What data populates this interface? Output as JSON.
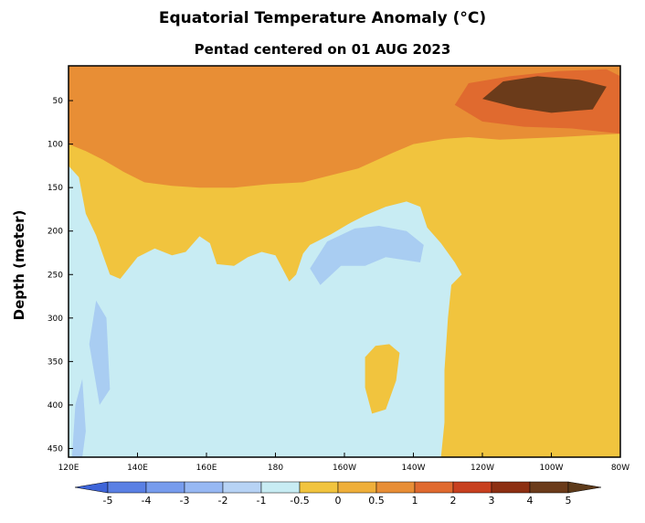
{
  "chart_data": {
    "type": "heatmap",
    "title": "Equatorial Temperature Anomaly (°C)",
    "subtitle": "Pentad centered on 01 AUG 2023",
    "xlabel": "",
    "ylabel": "Depth (meter)",
    "x_ticks": [
      {
        "lon": 120,
        "label": "120E"
      },
      {
        "lon": 140,
        "label": "140E"
      },
      {
        "lon": 160,
        "label": "160E"
      },
      {
        "lon": 180,
        "label": "180"
      },
      {
        "lon": 200,
        "label": "160W"
      },
      {
        "lon": 220,
        "label": "140W"
      },
      {
        "lon": 240,
        "label": "120W"
      },
      {
        "lon": 260,
        "label": "100W"
      },
      {
        "lon": 280,
        "label": "80W"
      }
    ],
    "y_ticks": [
      50,
      100,
      150,
      200,
      250,
      300,
      350,
      400,
      450
    ],
    "xlim": [
      120,
      280
    ],
    "ylim": [
      460,
      10
    ],
    "colorbar": {
      "levels": [
        "-5",
        "-4",
        "-3",
        "-2",
        "-1",
        "-0.5",
        "0",
        "0.5",
        "1",
        "2",
        "3",
        "4",
        "5"
      ],
      "colors": [
        "#3d64d8",
        "#5a80e4",
        "#779ced",
        "#97b8f3",
        "#b7d3f5",
        "#c8ecf3",
        "#f1c43e",
        "#efaf3a",
        "#e88e35",
        "#e06a2f",
        "#c8401f",
        "#8d2f12",
        "#6b3b1a",
        "#5d3a1a"
      ]
    },
    "regions": [
      {
        "name": "upper-warm-band",
        "anomaly": "1 to 2",
        "polygon": [
          [
            120,
            10
          ],
          [
            280,
            10
          ],
          [
            280,
            88
          ],
          [
            262,
            92
          ],
          [
            245,
            95
          ],
          [
            236,
            92
          ],
          [
            229,
            94
          ],
          [
            220,
            100
          ],
          [
            214,
            110
          ],
          [
            204,
            128
          ],
          [
            198,
            134
          ],
          [
            188,
            144
          ],
          [
            178,
            146
          ],
          [
            168,
            150
          ],
          [
            158,
            150
          ],
          [
            150,
            148
          ],
          [
            142,
            144
          ],
          [
            136,
            132
          ],
          [
            130,
            118
          ],
          [
            125,
            108
          ],
          [
            120,
            100
          ]
        ]
      },
      {
        "name": "cold-subsurface-west",
        "anomaly": "0 to -0.5",
        "polygon": [
          [
            120,
            460
          ],
          [
            120,
            125
          ],
          [
            123,
            138
          ],
          [
            125,
            180
          ],
          [
            128,
            205
          ],
          [
            130,
            228
          ],
          [
            132,
            250
          ],
          [
            135,
            255
          ],
          [
            140,
            230
          ],
          [
            145,
            220
          ],
          [
            150,
            228
          ],
          [
            154,
            224
          ],
          [
            158,
            206
          ],
          [
            161,
            214
          ],
          [
            163,
            238
          ],
          [
            168,
            240
          ],
          [
            172,
            230
          ],
          [
            176,
            224
          ],
          [
            180,
            228
          ],
          [
            184,
            258
          ],
          [
            186,
            250
          ],
          [
            188,
            226
          ],
          [
            190,
            216
          ],
          [
            196,
            204
          ],
          [
            202,
            190
          ],
          [
            206,
            182
          ],
          [
            212,
            172
          ],
          [
            218,
            166
          ],
          [
            222,
            172
          ],
          [
            224,
            196
          ],
          [
            228,
            214
          ],
          [
            232,
            236
          ],
          [
            234,
            250
          ],
          [
            231,
            262
          ],
          [
            230,
            300
          ],
          [
            229,
            360
          ],
          [
            229,
            420
          ],
          [
            228,
            460
          ]
        ]
      },
      {
        "name": "cool-patch-central",
        "anomaly": "-0.5 to -1",
        "polygon": [
          [
            190,
            243
          ],
          [
            195,
            212
          ],
          [
            203,
            197
          ],
          [
            210,
            194
          ],
          [
            218,
            200
          ],
          [
            223,
            216
          ],
          [
            222,
            236
          ],
          [
            212,
            230
          ],
          [
            206,
            240
          ],
          [
            199,
            240
          ],
          [
            193,
            262
          ]
        ]
      },
      {
        "name": "cool-streak-west",
        "anomaly": "-0.5 to -1",
        "polygon": [
          [
            126,
            330
          ],
          [
            128,
            280
          ],
          [
            131,
            300
          ],
          [
            132,
            382
          ],
          [
            129,
            400
          ]
        ]
      },
      {
        "name": "cool-streak-west-2",
        "anomaly": "-0.5 to -1",
        "polygon": [
          [
            121,
            460
          ],
          [
            122,
            400
          ],
          [
            124,
            370
          ],
          [
            125,
            430
          ],
          [
            124,
            460
          ]
        ]
      },
      {
        "name": "warm-blob-subsurface",
        "anomaly": "0 to 0.5",
        "polygon": [
          [
            206,
            380
          ],
          [
            206,
            345
          ],
          [
            209,
            332
          ],
          [
            213,
            330
          ],
          [
            216,
            340
          ],
          [
            215,
            372
          ],
          [
            212,
            405
          ],
          [
            208,
            410
          ]
        ]
      },
      {
        "name": "strong-warm-core-east",
        "anomaly": "2 to 3",
        "polygon": [
          [
            232,
            55
          ],
          [
            236,
            30
          ],
          [
            248,
            22
          ],
          [
            262,
            16
          ],
          [
            276,
            14
          ],
          [
            280,
            22
          ],
          [
            280,
            88
          ],
          [
            266,
            82
          ],
          [
            252,
            80
          ],
          [
            240,
            74
          ]
        ]
      },
      {
        "name": "very-strong-warm-core",
        "anomaly": "4 to 5",
        "polygon": [
          [
            240,
            48
          ],
          [
            246,
            28
          ],
          [
            256,
            22
          ],
          [
            268,
            26
          ],
          [
            276,
            34
          ],
          [
            272,
            60
          ],
          [
            260,
            64
          ],
          [
            250,
            58
          ]
        ]
      }
    ]
  }
}
